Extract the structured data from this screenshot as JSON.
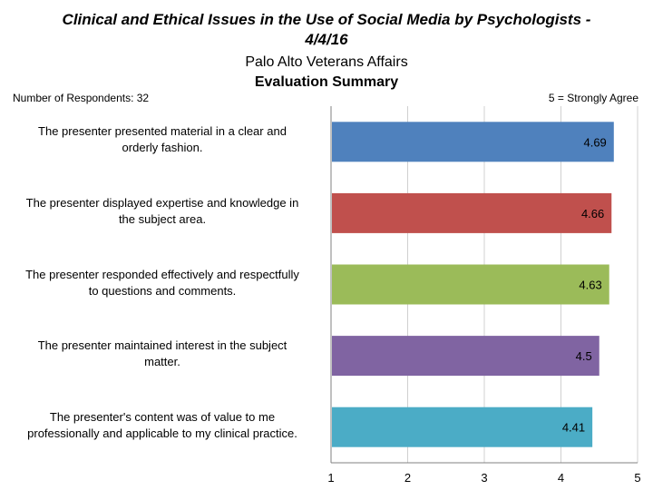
{
  "header": {
    "title_line1": "Clinical and Ethical Issues in the Use of Social Media by Psychologists -",
    "title_line2": "4/4/16",
    "subtitle": "Palo Alto Veterans Affairs",
    "section_title": "Evaluation Summary",
    "respondents_note": "Number of Respondents: 32",
    "scale_note": "5 = Strongly Agree"
  },
  "chart_data": {
    "type": "bar",
    "orientation": "horizontal",
    "categories": [
      [
        "The presenter presented material in a clear and",
        "orderly fashion."
      ],
      [
        "The presenter displayed expertise and knowledge in",
        "the subject area."
      ],
      [
        "The presenter responded effectively and respectfully",
        "to questions and comments."
      ],
      [
        "The presenter maintained interest in the subject",
        "matter."
      ],
      [
        "The presenter's content was of value to me",
        "professionally and applicable to my clinical practice."
      ]
    ],
    "values": [
      4.69,
      4.66,
      4.63,
      4.5,
      4.41
    ],
    "value_labels": [
      "4.69",
      "4.66",
      "4.63",
      "4.5",
      "4.41"
    ],
    "colors": [
      "#4f81bd",
      "#c0504d",
      "#9bbb59",
      "#8064a2",
      "#4bacc6"
    ],
    "xlim": [
      1,
      5
    ],
    "xticks": [
      "1",
      "2",
      "3",
      "4",
      "5"
    ],
    "grid": true
  }
}
